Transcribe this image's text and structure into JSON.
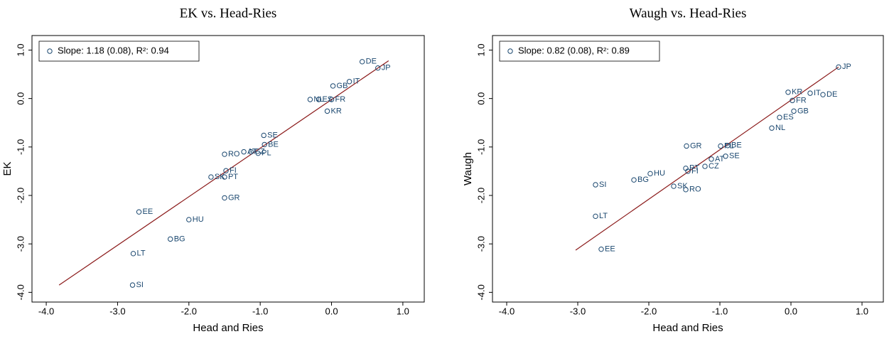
{
  "chart_data": [
    {
      "type": "scatter",
      "title": "EK vs. Head-Ries",
      "xlabel": "Head and Ries",
      "ylabel": "EK",
      "xlim": [
        -4.2,
        1.3
      ],
      "ylim": [
        -4.2,
        1.3
      ],
      "xticks": [
        {
          "value": -4,
          "label": "-4.0"
        },
        {
          "value": -3,
          "label": "-3.0"
        },
        {
          "value": -2,
          "label": "-2.0"
        },
        {
          "value": -1,
          "label": "-1.0"
        },
        {
          "value": 0,
          "label": "0.0"
        },
        {
          "value": 1,
          "label": "1.0"
        }
      ],
      "yticks": [
        {
          "value": -4,
          "label": "-4.0"
        },
        {
          "value": -3,
          "label": "-3.0"
        },
        {
          "value": -2,
          "label": "-2.0"
        },
        {
          "value": -1,
          "label": "-1.0"
        },
        {
          "value": 0,
          "label": "0.0"
        },
        {
          "value": 1,
          "label": "1.0"
        }
      ],
      "series": [
        {
          "name": "Slope:  1.18 (0.08), R²: 0.94",
          "color": "#1a476f",
          "labels": [
            "DE",
            "JP",
            "IT",
            "GB",
            "NL",
            "ES",
            "FR",
            "KR",
            "SE",
            "BE",
            "RO",
            "AT",
            "CZ",
            "PL",
            "SK",
            "PT",
            "FI",
            "GR",
            "EE",
            "HU",
            "BG",
            "LT",
            "SI"
          ],
          "x": [
            0.43,
            0.65,
            0.25,
            0.02,
            -0.3,
            -0.18,
            0.0,
            -0.06,
            -0.95,
            -0.94,
            -1.5,
            -1.23,
            -1.13,
            -1.03,
            -1.69,
            -1.5,
            -1.48,
            -1.5,
            -2.7,
            -2.0,
            -2.26,
            -2.78,
            -2.79
          ],
          "values": [
            0.76,
            0.63,
            0.35,
            0.26,
            -0.02,
            -0.02,
            -0.02,
            -0.26,
            -0.76,
            -0.95,
            -1.15,
            -1.1,
            -1.1,
            -1.13,
            -1.62,
            -1.62,
            -1.49,
            -2.05,
            -2.34,
            -2.5,
            -2.9,
            -3.2,
            -3.85
          ]
        }
      ],
      "fit": {
        "color": "#8b1a1a",
        "x": [
          -3.82,
          0.8
        ],
        "values": [
          -3.85,
          0.78
        ]
      }
    },
    {
      "type": "scatter",
      "title": "Waugh vs. Head-Ries",
      "xlabel": "Head and Ries",
      "ylabel": "Waugh",
      "xlim": [
        -4.2,
        1.3
      ],
      "ylim": [
        -4.2,
        1.3
      ],
      "xticks": [
        {
          "value": -4,
          "label": "-4.0"
        },
        {
          "value": -3,
          "label": "-3.0"
        },
        {
          "value": -2,
          "label": "-2.0"
        },
        {
          "value": -1,
          "label": "-1.0"
        },
        {
          "value": 0,
          "label": "0.0"
        },
        {
          "value": 1,
          "label": "1.0"
        }
      ],
      "yticks": [
        {
          "value": -4,
          "label": "-4.0"
        },
        {
          "value": -3,
          "label": "-3.0"
        },
        {
          "value": -2,
          "label": "-2.0"
        },
        {
          "value": -1,
          "label": "-1.0"
        },
        {
          "value": 0,
          "label": "0.0"
        },
        {
          "value": 1,
          "label": "1.0"
        }
      ],
      "series": [
        {
          "name": "Slope:  0.82 (0.08), R²: 0.89",
          "color": "#1a476f",
          "labels": [
            "JP",
            "KR",
            "IT",
            "DE",
            "FR",
            "GB",
            "ES",
            "NL",
            "GR",
            "BE",
            "PL",
            "SE",
            "AT",
            "CZ",
            "PT",
            "FI",
            "HU",
            "BG",
            "SI",
            "SK",
            "RO",
            "LT",
            "EE"
          ],
          "x": [
            0.67,
            -0.04,
            0.27,
            0.45,
            0.02,
            0.04,
            -0.16,
            -0.27,
            -1.47,
            -0.89,
            -0.99,
            -0.92,
            -1.12,
            -1.21,
            -1.48,
            -1.45,
            -1.98,
            -2.21,
            -2.75,
            -1.65,
            -1.48,
            -2.75,
            -2.67
          ],
          "values": [
            0.65,
            0.13,
            0.11,
            0.08,
            -0.04,
            -0.26,
            -0.39,
            -0.61,
            -0.98,
            -0.97,
            -0.98,
            -1.19,
            -1.25,
            -1.4,
            -1.44,
            -1.5,
            -1.55,
            -1.68,
            -1.78,
            -1.81,
            -1.88,
            -2.43,
            -3.11
          ]
        }
      ],
      "fit": {
        "color": "#8b1a1a",
        "x": [
          -3.03,
          0.67
        ],
        "values": [
          -3.13,
          0.65
        ]
      }
    }
  ]
}
